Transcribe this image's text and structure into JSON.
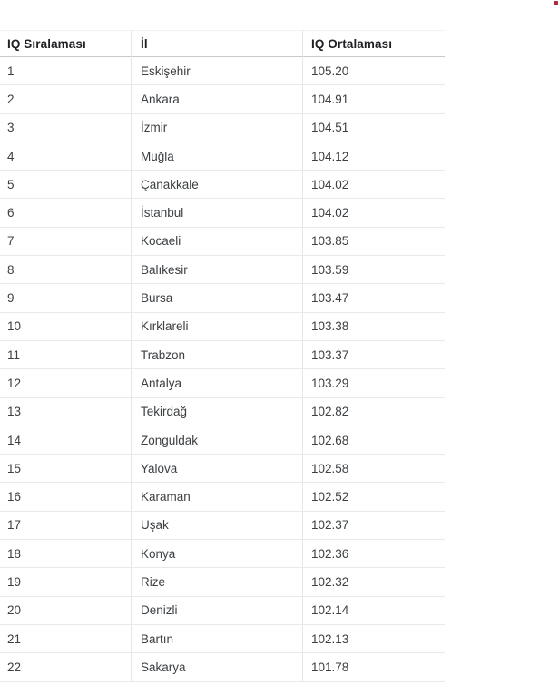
{
  "page": {
    "red_marker_color": "#a82c3c"
  },
  "table": {
    "columns": [
      {
        "key": "rank",
        "label": "IQ Sıralaması"
      },
      {
        "key": "city",
        "label": "İl"
      },
      {
        "key": "score",
        "label": "IQ Ortalaması"
      }
    ],
    "rows": [
      {
        "rank": "1",
        "city": "Eskişehir",
        "score": "105.20"
      },
      {
        "rank": "2",
        "city": "Ankara",
        "score": "104.91"
      },
      {
        "rank": "3",
        "city": "İzmir",
        "score": "104.51"
      },
      {
        "rank": "4",
        "city": "Muğla",
        "score": "104.12"
      },
      {
        "rank": "5",
        "city": "Çanakkale",
        "score": "104.02"
      },
      {
        "rank": "6",
        "city": "İstanbul",
        "score": "104.02"
      },
      {
        "rank": "7",
        "city": "Kocaeli",
        "score": "103.85"
      },
      {
        "rank": "8",
        "city": "Balıkesir",
        "score": "103.59"
      },
      {
        "rank": "9",
        "city": "Bursa",
        "score": "103.47"
      },
      {
        "rank": "10",
        "city": "Kırklareli",
        "score": "103.38"
      },
      {
        "rank": "11",
        "city": "Trabzon",
        "score": "103.37"
      },
      {
        "rank": "12",
        "city": "Antalya",
        "score": "103.29"
      },
      {
        "rank": "13",
        "city": "Tekirdağ",
        "score": "102.82"
      },
      {
        "rank": "14",
        "city": "Zonguldak",
        "score": "102.68"
      },
      {
        "rank": "15",
        "city": "Yalova",
        "score": "102.58"
      },
      {
        "rank": "16",
        "city": "Karaman",
        "score": "102.52"
      },
      {
        "rank": "17",
        "city": "Uşak",
        "score": "102.37"
      },
      {
        "rank": "18",
        "city": "Konya",
        "score": "102.36"
      },
      {
        "rank": "19",
        "city": "Rize",
        "score": "102.32"
      },
      {
        "rank": "20",
        "city": "Denizli",
        "score": "102.14"
      },
      {
        "rank": "21",
        "city": "Bartın",
        "score": "102.13"
      },
      {
        "rank": "22",
        "city": "Sakarya",
        "score": "101.78"
      }
    ]
  }
}
